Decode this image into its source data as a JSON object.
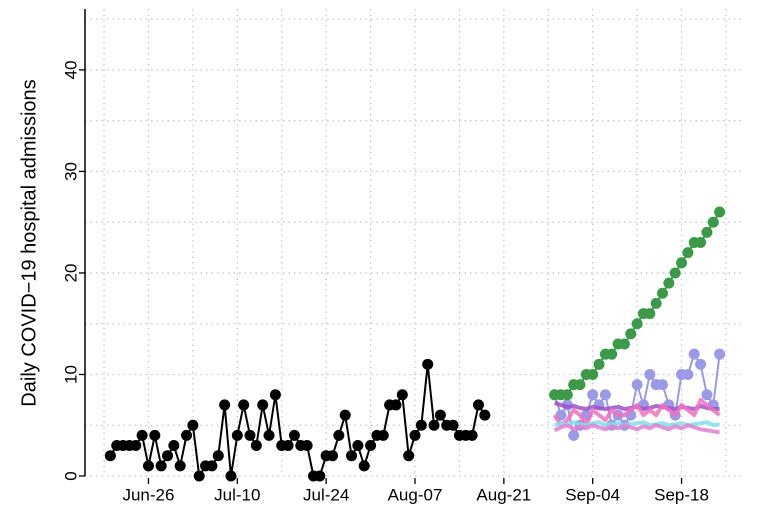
{
  "chart_data": {
    "type": "line",
    "ylabel": "Daily COVID−19 hospital admissions",
    "ylim": [
      0,
      46
    ],
    "yticks": [
      0,
      10,
      20,
      30,
      40
    ],
    "xlim": [
      "Jun-16",
      "Sep-28"
    ],
    "xticks": [
      "Jun-26",
      "Jul-10",
      "Jul-24",
      "Aug-07",
      "Aug-21",
      "Sep-04",
      "Sep-18"
    ],
    "grid": true,
    "series": [
      {
        "color": "#000000",
        "markers": true,
        "x": [
          "Jun-20",
          "Jun-21",
          "Jun-22",
          "Jun-23",
          "Jun-24",
          "Jun-25",
          "Jun-26",
          "Jun-27",
          "Jun-28",
          "Jun-29",
          "Jun-30",
          "Jul-01",
          "Jul-02",
          "Jul-03",
          "Jul-04",
          "Jul-05",
          "Jul-06",
          "Jul-07",
          "Jul-08",
          "Jul-09",
          "Jul-10",
          "Jul-11",
          "Jul-12",
          "Jul-13",
          "Jul-14",
          "Jul-15",
          "Jul-16",
          "Jul-17",
          "Jul-18",
          "Jul-19",
          "Jul-20",
          "Jul-21",
          "Jul-22",
          "Jul-23",
          "Jul-24",
          "Jul-25",
          "Jul-26",
          "Jul-27",
          "Jul-28",
          "Jul-29",
          "Jul-30",
          "Jul-31",
          "Aug-01",
          "Aug-02",
          "Aug-03",
          "Aug-04",
          "Aug-05",
          "Aug-06",
          "Aug-07",
          "Aug-08",
          "Aug-09",
          "Aug-10",
          "Aug-11",
          "Aug-12",
          "Aug-13",
          "Aug-14",
          "Aug-15",
          "Aug-16",
          "Aug-17",
          "Aug-18"
        ],
        "values": [
          2,
          3,
          3,
          3,
          3,
          4,
          1,
          4,
          1,
          2,
          3,
          1,
          4,
          5,
          0,
          1,
          1,
          2,
          7,
          0,
          4,
          7,
          4,
          3,
          7,
          4,
          8,
          3,
          3,
          4,
          3,
          3,
          0,
          0,
          2,
          2,
          4,
          6,
          2,
          3,
          1,
          3,
          4,
          4,
          7,
          7,
          8,
          2,
          4,
          5,
          11,
          5,
          6,
          5,
          5,
          4,
          4,
          4,
          7,
          6
        ]
      },
      {
        "color": "#9a9ae8",
        "markers": true,
        "x": [
          "Aug-29",
          "Aug-30",
          "Aug-31",
          "Sep-01",
          "Sep-02",
          "Sep-03",
          "Sep-04",
          "Sep-05",
          "Sep-06",
          "Sep-07",
          "Sep-08",
          "Sep-09",
          "Sep-10",
          "Sep-11",
          "Sep-12",
          "Sep-13",
          "Sep-14",
          "Sep-15",
          "Sep-16",
          "Sep-17",
          "Sep-18",
          "Sep-19",
          "Sep-20",
          "Sep-21",
          "Sep-22",
          "Sep-23",
          "Sep-24"
        ],
        "values": [
          8,
          6,
          7,
          4,
          5,
          6,
          8,
          7,
          8,
          5,
          6,
          5,
          6,
          9,
          7,
          10,
          9,
          9,
          7,
          6,
          10,
          10,
          12,
          11,
          8,
          7,
          12
        ]
      },
      {
        "color": "#a050c8",
        "markers": false,
        "x": [
          "Aug-29",
          "Aug-30",
          "Aug-31",
          "Sep-01",
          "Sep-02",
          "Sep-03",
          "Sep-04",
          "Sep-05",
          "Sep-06",
          "Sep-07",
          "Sep-08",
          "Sep-09",
          "Sep-10",
          "Sep-11",
          "Sep-12",
          "Sep-13",
          "Sep-14",
          "Sep-15",
          "Sep-16",
          "Sep-17",
          "Sep-18",
          "Sep-19",
          "Sep-20",
          "Sep-21",
          "Sep-22",
          "Sep-23",
          "Sep-24"
        ],
        "values": [
          7.2,
          7,
          6.8,
          6.9,
          6.7,
          6.6,
          6.8,
          6.7,
          6.6,
          6.7,
          6.8,
          6.6,
          6.7,
          6.8,
          6.6,
          6.7,
          6.9,
          6.8,
          6.7,
          6.6,
          6.8,
          6.7,
          6.6,
          6.9,
          6.7,
          6.6,
          6.6
        ]
      },
      {
        "color": "#f070c0",
        "markers": false,
        "x": [
          "Aug-29",
          "Aug-30",
          "Aug-31",
          "Sep-01",
          "Sep-02",
          "Sep-03",
          "Sep-04",
          "Sep-05",
          "Sep-06",
          "Sep-07",
          "Sep-08",
          "Sep-09",
          "Sep-10",
          "Sep-11",
          "Sep-12",
          "Sep-13",
          "Sep-14",
          "Sep-15",
          "Sep-16",
          "Sep-17",
          "Sep-18",
          "Sep-19",
          "Sep-20",
          "Sep-21",
          "Sep-22",
          "Sep-23",
          "Sep-24"
        ],
        "values": [
          6,
          5,
          5.5,
          6.5,
          6,
          5,
          6.5,
          6,
          5.5,
          6.5,
          6,
          6,
          6.5,
          7,
          6,
          6.5,
          6,
          7,
          6.5,
          6,
          7,
          6.5,
          6,
          7.5,
          7,
          6.5,
          6
        ]
      },
      {
        "color": "#80e0e8",
        "markers": false,
        "x": [
          "Aug-29",
          "Aug-30",
          "Aug-31",
          "Sep-01",
          "Sep-02",
          "Sep-03",
          "Sep-04",
          "Sep-05",
          "Sep-06",
          "Sep-07",
          "Sep-08",
          "Sep-09",
          "Sep-10",
          "Sep-11",
          "Sep-12",
          "Sep-13",
          "Sep-14",
          "Sep-15",
          "Sep-16",
          "Sep-17",
          "Sep-18",
          "Sep-19",
          "Sep-20",
          "Sep-21",
          "Sep-22",
          "Sep-23",
          "Sep-24"
        ],
        "values": [
          5,
          5.2,
          5,
          5.3,
          5.1,
          5,
          5.2,
          5.3,
          5,
          5.1,
          5.2,
          5,
          5.1,
          5.2,
          5.3,
          5,
          5.1,
          5.2,
          5,
          5.1,
          5.2,
          5,
          5.1,
          5.2,
          5.3,
          5,
          5.1
        ]
      },
      {
        "color": "#e080d0",
        "markers": false,
        "x": [
          "Aug-29",
          "Aug-30",
          "Aug-31",
          "Sep-01",
          "Sep-02",
          "Sep-03",
          "Sep-04",
          "Sep-05",
          "Sep-06",
          "Sep-07",
          "Sep-08",
          "Sep-09",
          "Sep-10",
          "Sep-11",
          "Sep-12",
          "Sep-13",
          "Sep-14",
          "Sep-15",
          "Sep-16",
          "Sep-17",
          "Sep-18",
          "Sep-19",
          "Sep-20",
          "Sep-21",
          "Sep-22",
          "Sep-23",
          "Sep-24"
        ],
        "values": [
          4.5,
          4.8,
          5,
          4.6,
          4.9,
          4.7,
          5,
          4.8,
          4.6,
          4.9,
          4.7,
          5,
          4.8,
          4.6,
          4.9,
          4.7,
          5,
          4.8,
          4.6,
          4.9,
          4.7,
          5,
          4.8,
          4.6,
          4.5,
          4.4,
          4.3
        ]
      },
      {
        "color": "#3a9a48",
        "markers": true,
        "x": [
          "Aug-29",
          "Aug-30",
          "Aug-31",
          "Sep-01",
          "Sep-02",
          "Sep-03",
          "Sep-04",
          "Sep-05",
          "Sep-06",
          "Sep-07",
          "Sep-08",
          "Sep-09",
          "Sep-10",
          "Sep-11",
          "Sep-12",
          "Sep-13",
          "Sep-14",
          "Sep-15",
          "Sep-16",
          "Sep-17",
          "Sep-18",
          "Sep-19",
          "Sep-20",
          "Sep-21",
          "Sep-22",
          "Sep-23",
          "Sep-24"
        ],
        "values": [
          8,
          8,
          8,
          9,
          9,
          10,
          10,
          11,
          12,
          12,
          13,
          13,
          14,
          15,
          16,
          16,
          17,
          18,
          19,
          20,
          21,
          22,
          23,
          23,
          24,
          25,
          26
        ]
      }
    ]
  }
}
